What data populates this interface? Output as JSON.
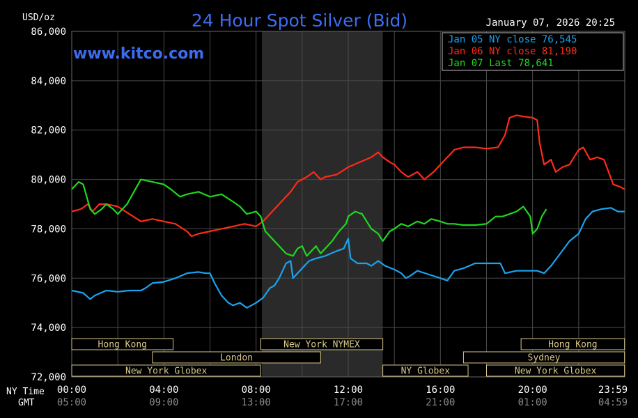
{
  "header": {
    "unit": "USD/oz",
    "title": "24 Hour Spot Silver (Bid)",
    "datetime": "January 07, 2026 20:25",
    "watermark": "www.kitco.com"
  },
  "time_axis": {
    "ny_label": "NY Time",
    "gmt_label": "GMT",
    "ny_ticks": [
      "00:00",
      "04:00",
      "08:00",
      "12:00",
      "16:00",
      "20:00",
      "23:59"
    ],
    "gmt_ticks": [
      "05:00",
      "09:00",
      "13:00",
      "17:00",
      "21:00",
      "01:00",
      "04:59"
    ]
  },
  "sessions": [
    {
      "label": "Hong Kong",
      "start": 0,
      "end": 4.4
    },
    {
      "label": "London",
      "start": 3.5,
      "end": 10.8
    },
    {
      "label": "New York Globex",
      "start": 0,
      "end": 8.2
    },
    {
      "label": "New York NYMEX",
      "start": 8.2,
      "end": 13.5
    },
    {
      "label": "NY Globex",
      "start": 13.5,
      "end": 17.2
    },
    {
      "label": "Hong Kong",
      "start": 19.5,
      "end": 23.99
    },
    {
      "label": "Sydney",
      "start": 17.0,
      "end": 23.99
    },
    {
      "label": "New York Globex",
      "start": 18.0,
      "end": 23.99
    }
  ],
  "colors": {
    "background": "#000000",
    "grid": "#4a4a4a",
    "shade": "#2a2a2a",
    "title": "#3c6cf0",
    "jan05": "#1aa3f0",
    "jan06": "#ff2a1a",
    "jan07": "#1fd81f",
    "session": "#d8c88a"
  },
  "chart_data": {
    "type": "line",
    "ylabel": "USD/oz",
    "xlim_hours": [
      0,
      24
    ],
    "ylim": [
      72,
      86
    ],
    "yticks": [
      "86,000",
      "84,000",
      "82,000",
      "80,000",
      "78,000",
      "76,000",
      "74,000",
      "72,000"
    ],
    "ytick_values": [
      86,
      84,
      82,
      80,
      78,
      76,
      74,
      72
    ],
    "shaded_hours": [
      8.25,
      13.5
    ],
    "grid": true,
    "legend_position": "top-right",
    "series": [
      {
        "name": "Jan 05 NY close 76,545",
        "color": "#1aa3f0",
        "points": [
          [
            0,
            75.5
          ],
          [
            0.5,
            75.4
          ],
          [
            0.8,
            75.15
          ],
          [
            1,
            75.3
          ],
          [
            1.5,
            75.5
          ],
          [
            2,
            75.45
          ],
          [
            2.5,
            75.5
          ],
          [
            3,
            75.5
          ],
          [
            3.2,
            75.6
          ],
          [
            3.5,
            75.8
          ],
          [
            4,
            75.85
          ],
          [
            4.5,
            76.0
          ],
          [
            5,
            76.2
          ],
          [
            5.5,
            76.25
          ],
          [
            5.8,
            76.2
          ],
          [
            6,
            76.2
          ],
          [
            6.2,
            75.8
          ],
          [
            6.5,
            75.3
          ],
          [
            6.8,
            75.0
          ],
          [
            7,
            74.9
          ],
          [
            7.3,
            75.0
          ],
          [
            7.6,
            74.8
          ],
          [
            7.8,
            74.9
          ],
          [
            8,
            75.0
          ],
          [
            8.3,
            75.2
          ],
          [
            8.6,
            75.6
          ],
          [
            8.8,
            75.7
          ],
          [
            9,
            76.0
          ],
          [
            9.3,
            76.6
          ],
          [
            9.5,
            76.7
          ],
          [
            9.6,
            76.0
          ],
          [
            9.8,
            76.2
          ],
          [
            10,
            76.4
          ],
          [
            10.3,
            76.7
          ],
          [
            10.6,
            76.8
          ],
          [
            11,
            76.9
          ],
          [
            11.5,
            77.1
          ],
          [
            11.8,
            77.2
          ],
          [
            12,
            77.6
          ],
          [
            12.1,
            76.8
          ],
          [
            12.4,
            76.6
          ],
          [
            12.8,
            76.6
          ],
          [
            13,
            76.5
          ],
          [
            13.3,
            76.7
          ],
          [
            13.6,
            76.5
          ],
          [
            14,
            76.35
          ],
          [
            14.3,
            76.2
          ],
          [
            14.5,
            76.0
          ],
          [
            14.7,
            76.1
          ],
          [
            15,
            76.3
          ],
          [
            15.5,
            76.15
          ],
          [
            16,
            76.0
          ],
          [
            16.3,
            75.9
          ],
          [
            16.6,
            76.3
          ],
          [
            17,
            76.4
          ],
          [
            17.5,
            76.6
          ],
          [
            18,
            76.6
          ],
          [
            18.6,
            76.6
          ],
          [
            18.8,
            76.2
          ],
          [
            19.3,
            76.3
          ],
          [
            19.8,
            76.3
          ],
          [
            20.2,
            76.3
          ],
          [
            20.5,
            76.2
          ],
          [
            20.8,
            76.5
          ],
          [
            21.2,
            77.0
          ],
          [
            21.6,
            77.5
          ],
          [
            22,
            77.8
          ],
          [
            22.3,
            78.4
          ],
          [
            22.6,
            78.7
          ],
          [
            23,
            78.8
          ],
          [
            23.4,
            78.85
          ],
          [
            23.7,
            78.7
          ],
          [
            23.99,
            78.7
          ]
        ]
      },
      {
        "name": "Jan 06 NY close 81,190",
        "color": "#ff2a1a",
        "points": [
          [
            0,
            78.7
          ],
          [
            0.4,
            78.8
          ],
          [
            0.7,
            79.0
          ],
          [
            0.9,
            78.7
          ],
          [
            1,
            78.8
          ],
          [
            1.2,
            79.0
          ],
          [
            1.5,
            79.0
          ],
          [
            2,
            78.9
          ],
          [
            2.5,
            78.6
          ],
          [
            3,
            78.3
          ],
          [
            3.5,
            78.4
          ],
          [
            4,
            78.3
          ],
          [
            4.5,
            78.2
          ],
          [
            5,
            77.9
          ],
          [
            5.2,
            77.7
          ],
          [
            5.5,
            77.8
          ],
          [
            6,
            77.9
          ],
          [
            6.5,
            78.0
          ],
          [
            7,
            78.1
          ],
          [
            7.5,
            78.2
          ],
          [
            8,
            78.1
          ],
          [
            8.3,
            78.3
          ],
          [
            8.6,
            78.6
          ],
          [
            8.9,
            78.9
          ],
          [
            9.2,
            79.2
          ],
          [
            9.5,
            79.5
          ],
          [
            9.8,
            79.9
          ],
          [
            10.2,
            80.1
          ],
          [
            10.5,
            80.3
          ],
          [
            10.8,
            80.0
          ],
          [
            11,
            80.1
          ],
          [
            11.5,
            80.2
          ],
          [
            12,
            80.5
          ],
          [
            12.5,
            80.7
          ],
          [
            13,
            80.9
          ],
          [
            13.3,
            81.1
          ],
          [
            13.5,
            80.9
          ],
          [
            13.8,
            80.7
          ],
          [
            14,
            80.6
          ],
          [
            14.3,
            80.3
          ],
          [
            14.6,
            80.1
          ],
          [
            15,
            80.3
          ],
          [
            15.3,
            80.0
          ],
          [
            15.7,
            80.3
          ],
          [
            16,
            80.6
          ],
          [
            16.3,
            80.9
          ],
          [
            16.6,
            81.2
          ],
          [
            17,
            81.3
          ],
          [
            17.5,
            81.3
          ],
          [
            18,
            81.25
          ],
          [
            18.5,
            81.3
          ],
          [
            18.8,
            81.8
          ],
          [
            19,
            82.5
          ],
          [
            19.3,
            82.6
          ],
          [
            19.6,
            82.55
          ],
          [
            20,
            82.5
          ],
          [
            20.2,
            82.4
          ],
          [
            20.3,
            81.5
          ],
          [
            20.5,
            80.6
          ],
          [
            20.8,
            80.8
          ],
          [
            21,
            80.3
          ],
          [
            21.3,
            80.5
          ],
          [
            21.6,
            80.6
          ],
          [
            22,
            81.2
          ],
          [
            22.2,
            81.3
          ],
          [
            22.5,
            80.8
          ],
          [
            22.8,
            80.9
          ],
          [
            23.1,
            80.8
          ],
          [
            23.3,
            80.3
          ],
          [
            23.5,
            79.8
          ],
          [
            23.8,
            79.7
          ],
          [
            23.99,
            79.6
          ]
        ]
      },
      {
        "name": "Jan 07 Last 78,641",
        "color": "#1fd81f",
        "points": [
          [
            0,
            79.6
          ],
          [
            0.3,
            79.9
          ],
          [
            0.5,
            79.8
          ],
          [
            0.8,
            78.8
          ],
          [
            1,
            78.6
          ],
          [
            1.3,
            78.8
          ],
          [
            1.5,
            79.0
          ],
          [
            1.8,
            78.8
          ],
          [
            2,
            78.6
          ],
          [
            2.4,
            79.0
          ],
          [
            2.7,
            79.5
          ],
          [
            3,
            80.0
          ],
          [
            3.5,
            79.9
          ],
          [
            4,
            79.8
          ],
          [
            4.3,
            79.6
          ],
          [
            4.7,
            79.3
          ],
          [
            5,
            79.4
          ],
          [
            5.5,
            79.5
          ],
          [
            6,
            79.3
          ],
          [
            6.5,
            79.4
          ],
          [
            7,
            79.1
          ],
          [
            7.3,
            78.9
          ],
          [
            7.6,
            78.6
          ],
          [
            8,
            78.7
          ],
          [
            8.2,
            78.5
          ],
          [
            8.4,
            77.9
          ],
          [
            8.7,
            77.6
          ],
          [
            9,
            77.3
          ],
          [
            9.3,
            77.0
          ],
          [
            9.6,
            76.9
          ],
          [
            9.8,
            77.2
          ],
          [
            10,
            77.3
          ],
          [
            10.2,
            76.9
          ],
          [
            10.4,
            77.1
          ],
          [
            10.6,
            77.3
          ],
          [
            10.8,
            77.0
          ],
          [
            11,
            77.2
          ],
          [
            11.3,
            77.5
          ],
          [
            11.6,
            77.9
          ],
          [
            11.9,
            78.2
          ],
          [
            12,
            78.5
          ],
          [
            12.3,
            78.7
          ],
          [
            12.6,
            78.6
          ],
          [
            13,
            78.0
          ],
          [
            13.3,
            77.8
          ],
          [
            13.5,
            77.5
          ],
          [
            13.8,
            77.9
          ],
          [
            14,
            78.0
          ],
          [
            14.3,
            78.2
          ],
          [
            14.6,
            78.1
          ],
          [
            15,
            78.3
          ],
          [
            15.3,
            78.2
          ],
          [
            15.6,
            78.4
          ],
          [
            16,
            78.3
          ],
          [
            16.3,
            78.2
          ],
          [
            16.6,
            78.2
          ],
          [
            17,
            78.15
          ],
          [
            17.5,
            78.15
          ],
          [
            18,
            78.2
          ],
          [
            18.4,
            78.5
          ],
          [
            18.7,
            78.5
          ],
          [
            19,
            78.6
          ],
          [
            19.3,
            78.7
          ],
          [
            19.6,
            78.9
          ],
          [
            19.9,
            78.5
          ],
          [
            20,
            77.8
          ],
          [
            20.2,
            78.0
          ],
          [
            20.4,
            78.5
          ],
          [
            20.6,
            78.8
          ]
        ]
      }
    ]
  }
}
